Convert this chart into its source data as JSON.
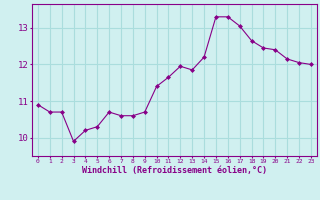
{
  "x": [
    0,
    1,
    2,
    3,
    4,
    5,
    6,
    7,
    8,
    9,
    10,
    11,
    12,
    13,
    14,
    15,
    16,
    17,
    18,
    19,
    20,
    21,
    22,
    23
  ],
  "y": [
    10.9,
    10.7,
    10.7,
    9.9,
    10.2,
    10.3,
    10.7,
    10.6,
    10.6,
    10.7,
    11.4,
    11.65,
    11.95,
    11.85,
    12.2,
    13.3,
    13.3,
    13.05,
    12.65,
    12.45,
    12.4,
    12.15,
    12.05,
    12.0
  ],
  "line_color": "#880088",
  "marker": "D",
  "marker_size": 2.0,
  "bg_color": "#d0f0f0",
  "grid_color": "#aadddd",
  "xlabel": "Windchill (Refroidissement éolien,°C)",
  "xlabel_color": "#880088",
  "tick_color": "#880088",
  "ylim": [
    9.5,
    13.65
  ],
  "yticks": [
    10,
    11,
    12,
    13
  ],
  "xlim": [
    -0.5,
    23.5
  ],
  "xticks": [
    0,
    1,
    2,
    3,
    4,
    5,
    6,
    7,
    8,
    9,
    10,
    11,
    12,
    13,
    14,
    15,
    16,
    17,
    18,
    19,
    20,
    21,
    22,
    23
  ]
}
